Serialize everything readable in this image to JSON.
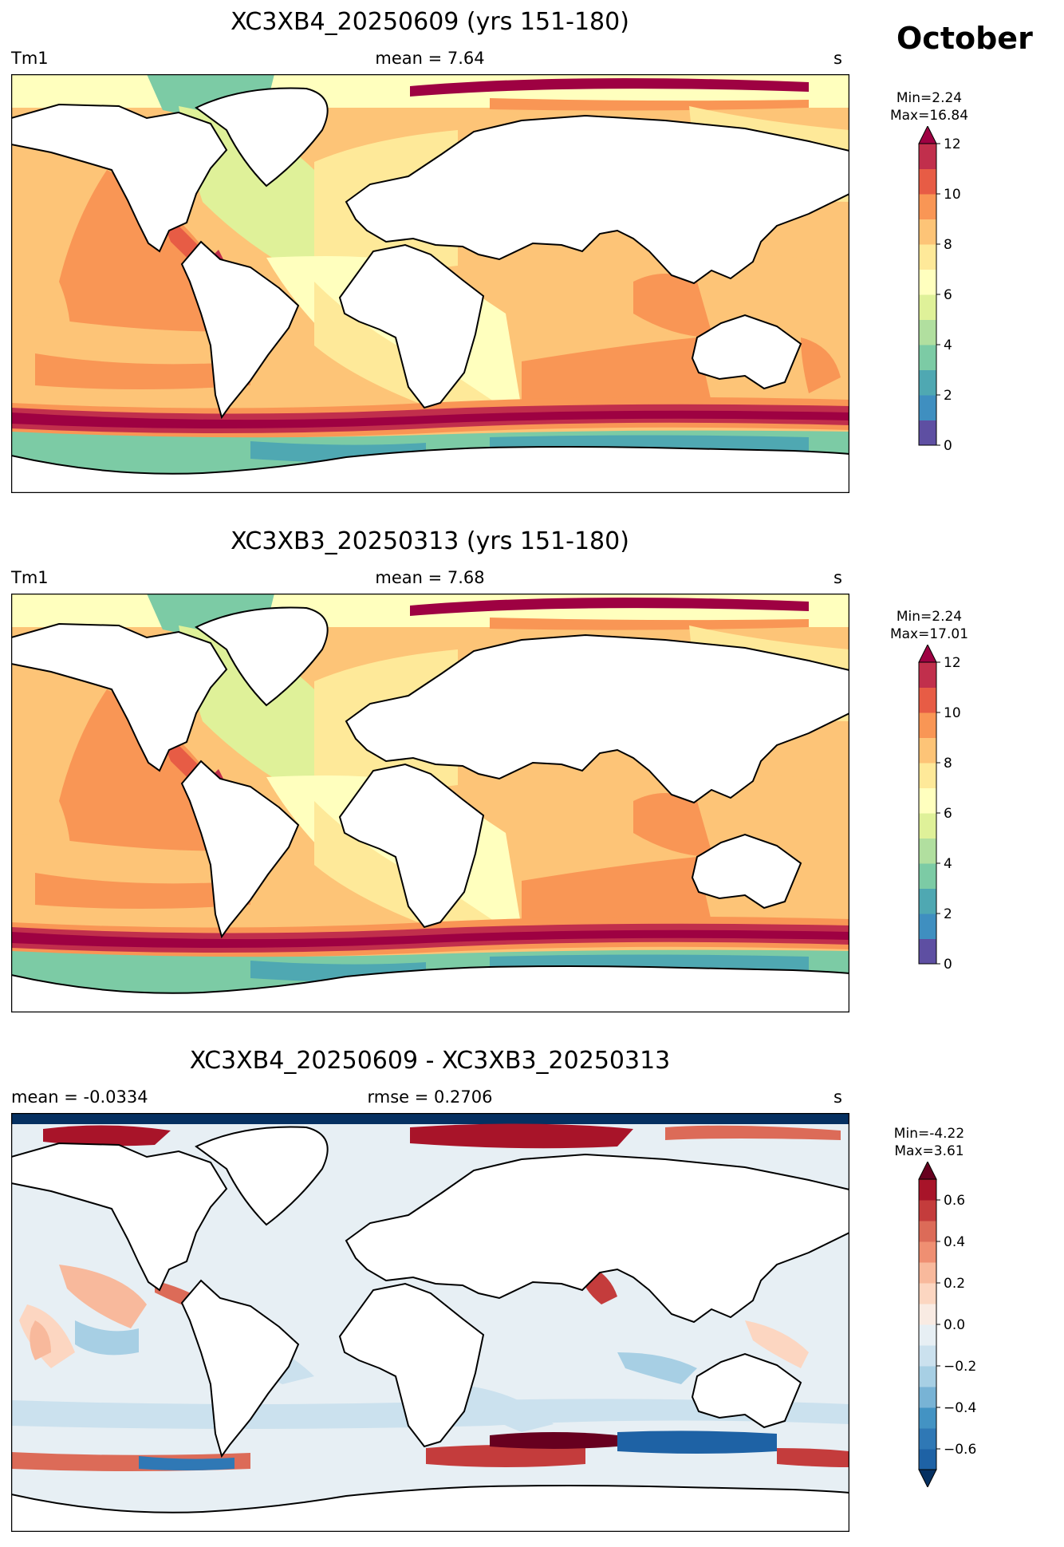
{
  "month_label": "October",
  "chart_data": [
    {
      "type": "heatmap",
      "title": "XC3XB4_20250609 (yrs 151-180)",
      "left_label": "Tm1",
      "center_label": "mean = 7.64",
      "right_label": "s",
      "variable": "Tm1",
      "units": "s",
      "mean": 7.64,
      "min_label": "Min=2.24",
      "max_label": "Max=16.84",
      "min": 2.24,
      "max": 16.84,
      "colorbar": {
        "levels": [
          0,
          1,
          2,
          3,
          4,
          5,
          6,
          7,
          8,
          9,
          10,
          11,
          12
        ],
        "tick_labels": [
          "0",
          "2",
          "4",
          "6",
          "8",
          "10",
          "12"
        ],
        "extend": "max",
        "cmap": "Spectral_r",
        "colors": [
          "#5e4fa2",
          "#3f8fc0",
          "#4fa8b2",
          "#7ccba5",
          "#b1df9f",
          "#dff199",
          "#ffffbe",
          "#fee999",
          "#fdc477",
          "#f99655",
          "#e75c45",
          "#c12f4c"
        ],
        "over_color": "#9e0142"
      }
    },
    {
      "type": "heatmap",
      "title": "XC3XB3_20250313 (yrs 151-180)",
      "left_label": "Tm1",
      "center_label": "mean = 7.68",
      "right_label": "s",
      "variable": "Tm1",
      "units": "s",
      "mean": 7.68,
      "min_label": "Min=2.24",
      "max_label": "Max=17.01",
      "min": 2.24,
      "max": 17.01,
      "colorbar": {
        "levels": [
          0,
          1,
          2,
          3,
          4,
          5,
          6,
          7,
          8,
          9,
          10,
          11,
          12
        ],
        "tick_labels": [
          "0",
          "2",
          "4",
          "6",
          "8",
          "10",
          "12"
        ],
        "extend": "max",
        "cmap": "Spectral_r",
        "colors": [
          "#5e4fa2",
          "#3f8fc0",
          "#4fa8b2",
          "#7ccba5",
          "#b1df9f",
          "#dff199",
          "#ffffbe",
          "#fee999",
          "#fdc477",
          "#f99655",
          "#e75c45",
          "#c12f4c"
        ],
        "over_color": "#9e0142"
      }
    },
    {
      "type": "heatmap",
      "title": "XC3XB4_20250609 - XC3XB3_20250313",
      "left_label": "mean = -0.0334",
      "center_label": "rmse = 0.2706",
      "right_label": "s",
      "units": "s",
      "mean": -0.0334,
      "rmse": 0.2706,
      "min_label": "Min=-4.22",
      "max_label": "Max=3.61",
      "min": -4.22,
      "max": 3.61,
      "colorbar": {
        "levels": [
          -0.7,
          -0.6,
          -0.5,
          -0.4,
          -0.3,
          -0.2,
          -0.1,
          0.0,
          0.1,
          0.2,
          0.3,
          0.4,
          0.5,
          0.6,
          0.7
        ],
        "tick_labels": [
          "−0.6",
          "−0.4",
          "−0.2",
          "0.0",
          "0.2",
          "0.4",
          "0.6"
        ],
        "extend": "both",
        "cmap": "RdBu_r",
        "colors": [
          "#1e62a5",
          "#2f78b5",
          "#4393c3",
          "#78b3d5",
          "#a7cfe4",
          "#cbe1ee",
          "#e7eff4",
          "#f9ebe3",
          "#fcd6c1",
          "#f8b99c",
          "#ef8f72",
          "#dc6b58",
          "#c43c3c",
          "#a81429"
        ],
        "under_color": "#053061",
        "over_color": "#67001f"
      }
    }
  ]
}
